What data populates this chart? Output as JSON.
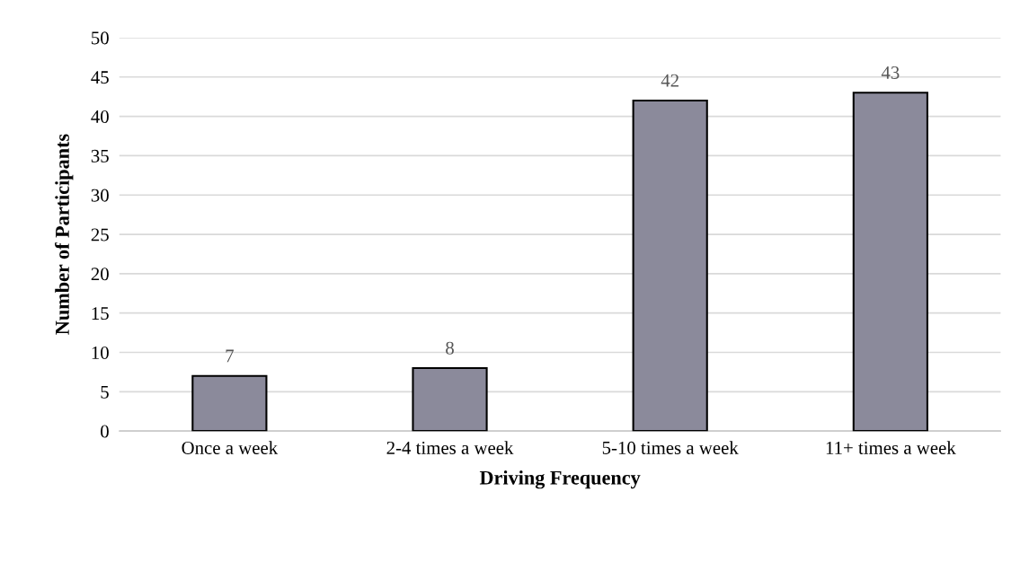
{
  "chart_data": {
    "type": "bar",
    "xlabel": "Driving Frequency",
    "ylabel": "Number of Participants",
    "categories": [
      "Once a week",
      "2-4 times a week",
      "5-10 times a week",
      "11+ times a week"
    ],
    "values": [
      7,
      8,
      42,
      43
    ],
    "color": "#8b8a9b",
    "ylim": [
      0,
      50
    ],
    "yticks": [
      0,
      5,
      10,
      15,
      20,
      25,
      30,
      35,
      40,
      45,
      50
    ],
    "grid": "y",
    "data_labels": true
  }
}
